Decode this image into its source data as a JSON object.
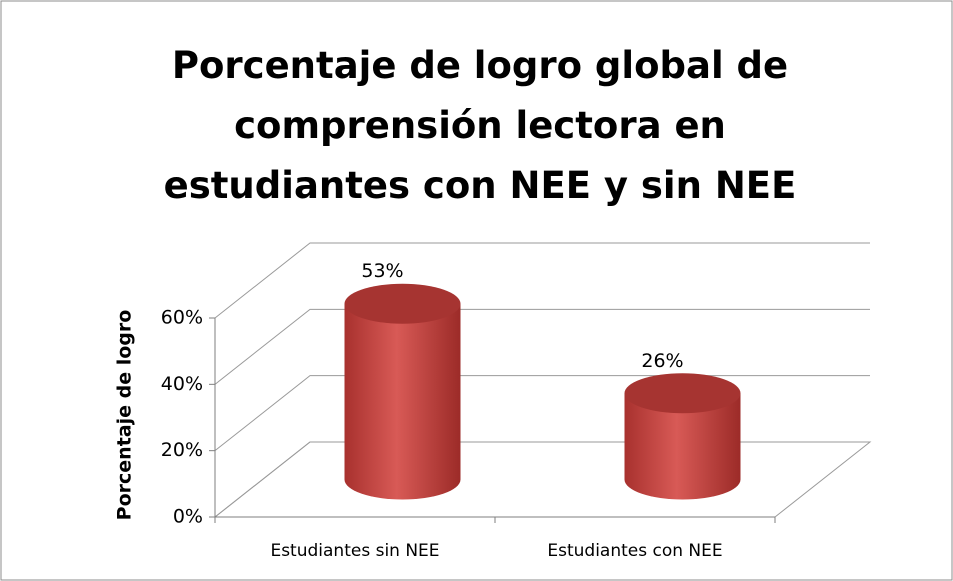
{
  "chart_data": {
    "type": "bar",
    "title": "Porcentaje de logro global de comprensión lectora en estudiantes con NEE y sin NEE",
    "categories": [
      "Estudiantes sin NEE",
      "Estudiantes con NEE"
    ],
    "values": [
      53,
      26
    ],
    "value_labels": [
      "53%",
      "26%"
    ],
    "color": "#c0504d",
    "y_label": "Porcentaje de logro",
    "ylim": [
      0,
      60
    ],
    "yticks": [
      {
        "value": 0,
        "label": "0%"
      },
      {
        "value": 20,
        "label": "20%"
      },
      {
        "value": 40,
        "label": "40%"
      },
      {
        "value": 60,
        "label": "60%"
      }
    ],
    "grid": true
  }
}
